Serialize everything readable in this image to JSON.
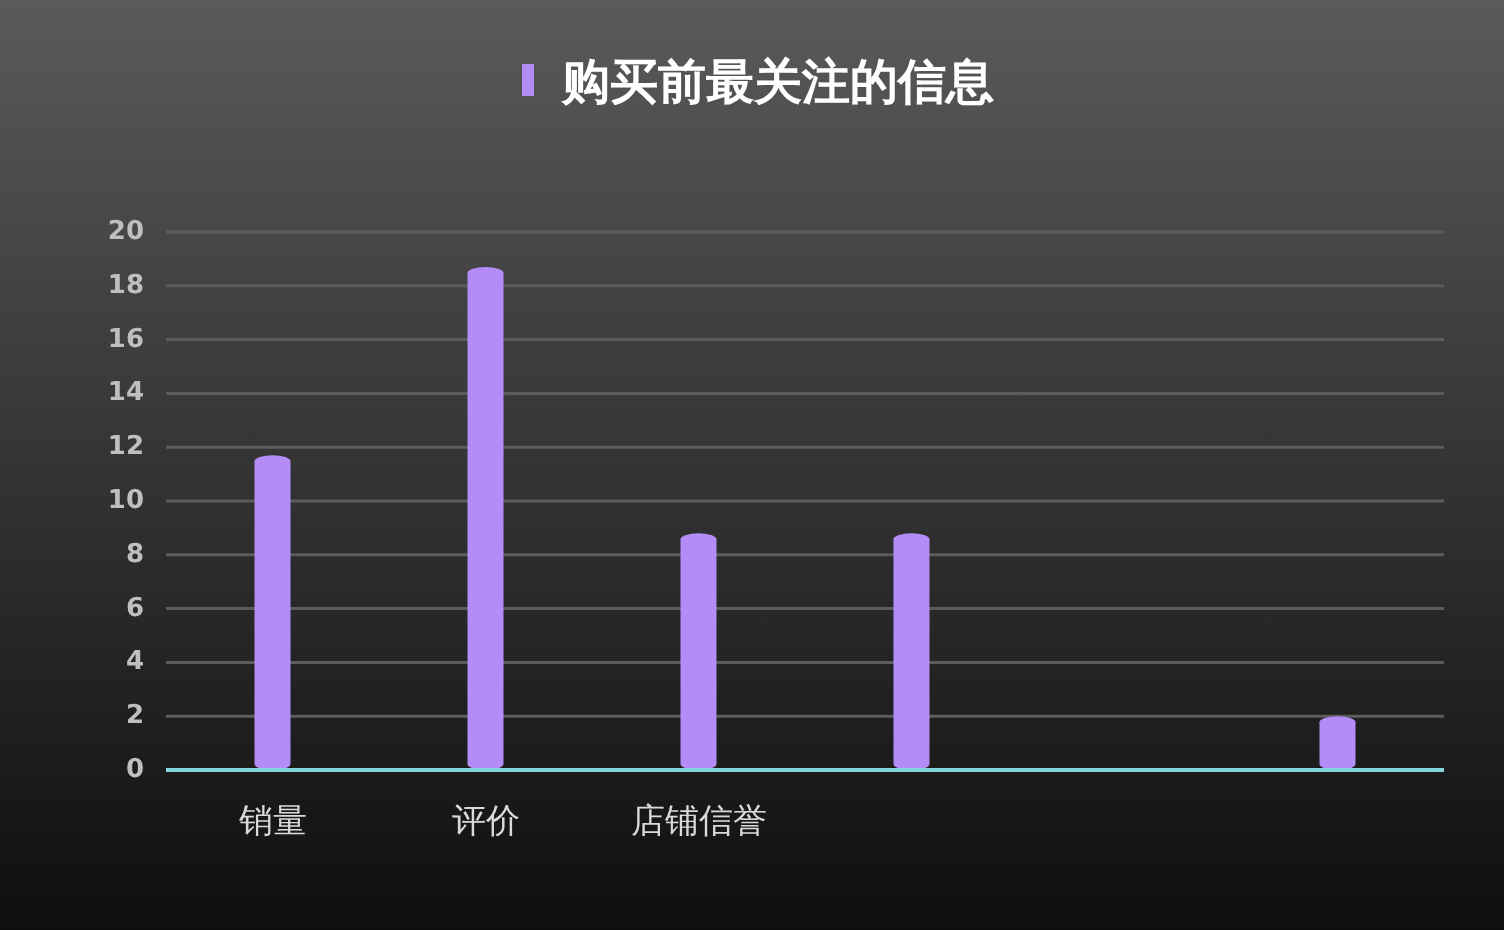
{
  "chart_data": {
    "type": "bar",
    "categories": [
      "销量",
      "评价",
      "店铺信誉",
      null,
      null,
      null
    ],
    "series": [
      {
        "name": "购买前最关注的信息",
        "color": "#b48cf7",
        "values": [
          11.7,
          18.7,
          8.8,
          8.8,
          0,
          2
        ]
      }
    ],
    "ylim": [
      0,
      20
    ],
    "yticks": [
      0,
      2,
      4,
      6,
      8,
      10,
      12,
      14,
      16,
      18,
      20
    ],
    "grid": "y",
    "legend": "top"
  }
}
